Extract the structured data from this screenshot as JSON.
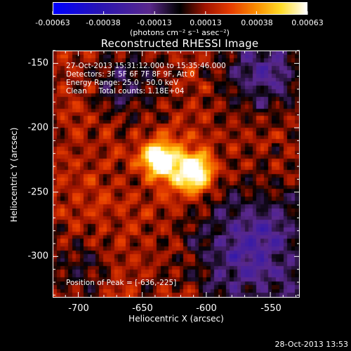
{
  "colorbar": {
    "ticks": [
      "-0.00063",
      "-0.00038",
      "-0.00013",
      "0.00013",
      "0.00038",
      "0.00063"
    ],
    "unit_label": "(photons cm⁻² s⁻¹ asec⁻²)",
    "range": [
      -0.00063,
      0.00063
    ]
  },
  "chart_data": {
    "type": "heatmap",
    "title": "Reconstructed RHESSI Image",
    "xlabel": "Heliocentric X (arcsec)",
    "ylabel": "Heliocentric Y (arcsec)",
    "xlim": [
      -720,
      -527
    ],
    "ylim": [
      -332,
      -140
    ],
    "xticks": [
      -700,
      -650,
      -600,
      -550
    ],
    "yticks": [
      -150,
      -200,
      -250,
      -300
    ],
    "peak": {
      "x": -636,
      "y": -225
    },
    "sources": [
      {
        "x": -637,
        "y": -225,
        "sigma": 9,
        "amp": 1.0
      },
      {
        "x": -608,
        "y": -235,
        "sigma": 10,
        "amp": 0.8
      },
      {
        "x": -620,
        "y": -232,
        "sigma": 14,
        "amp": 0.35
      }
    ],
    "negative_regions": [
      {
        "x": -560,
        "y": -295,
        "sigma": 35,
        "amp": -0.55
      },
      {
        "x": -555,
        "y": -155,
        "sigma": 22,
        "amp": -0.5
      },
      {
        "x": -660,
        "y": -165,
        "sigma": 18,
        "amp": -0.35
      },
      {
        "x": -700,
        "y": -310,
        "sigma": 15,
        "amp": -0.25
      }
    ]
  },
  "info": {
    "line1": "27-Oct-2013 15:31:12.000 to 15:35:46.000",
    "line2": "Detectors: 3F 5F 6F 7F 8F 9F, Att 0",
    "line3": "Energy Range: 25.0 - 50.0 keV",
    "line4": "Clean     Total counts: 1.18E+04",
    "peak_text": "Position of Peak = [-636,-225]"
  },
  "footer": {
    "datestamp": "28-Oct-2013 13:53"
  }
}
